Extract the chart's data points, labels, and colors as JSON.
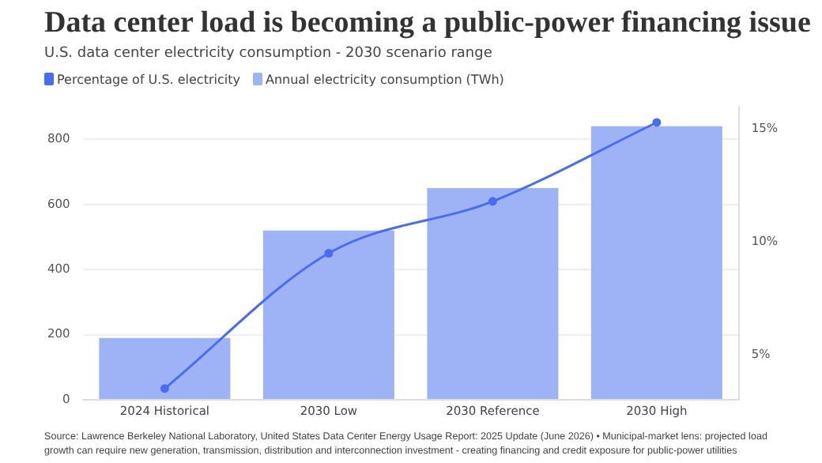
{
  "chart_data": {
    "type": "bar",
    "title": "Data center load is becoming a public-power financing issue",
    "subtitle": "U.S. data center electricity consumption - 2030 scenario range",
    "categories": [
      "2024 Historical",
      "2030 Low",
      "2030 Reference",
      "2030 High"
    ],
    "series": [
      {
        "name": "Percentage of U.S. electricity",
        "type": "line",
        "axis": "y2",
        "color": "#4a6cf0",
        "values": [
          3.5,
          9.5,
          11.8,
          15.3
        ]
      },
      {
        "name": "Annual electricity consumption (TWh)",
        "color": "#9db3f5",
        "values": [
          190,
          520,
          650,
          840
        ]
      }
    ],
    "ylim": [
      0,
      900
    ],
    "yticks": [
      0,
      200,
      400,
      600,
      800
    ],
    "y2lim": [
      3,
      16
    ],
    "y2ticks": [
      {
        "value": 5,
        "label": "5%"
      },
      {
        "value": 10,
        "label": "10%"
      },
      {
        "value": 15,
        "label": "15%"
      }
    ],
    "grid": "y",
    "legend": "top left",
    "marker": "circle",
    "annotations": [
      "Source: Lawrence Berkeley National Laboratory, United States Data Center Energy Usage Report: 2025 Update (June 2026) • Municipal-market lens: projected load growth can require new generation, transmission, distribution and interconnection investment - creating financing and credit exposure for public-power utilities"
    ]
  }
}
